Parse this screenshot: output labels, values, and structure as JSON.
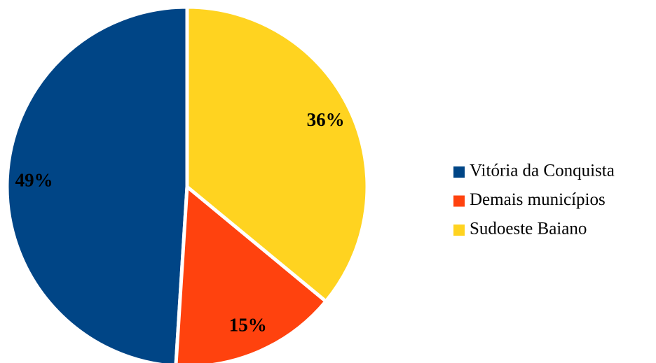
{
  "chart_data": {
    "type": "pie",
    "categories": [
      "Vitória da Conquista",
      "Demais municípios",
      "Sudoeste Baiano"
    ],
    "values": [
      49,
      15,
      36
    ],
    "value_labels": [
      "49%",
      "15%",
      "36%"
    ],
    "colors": [
      "#004586",
      "#ff420e",
      "#ffd320"
    ],
    "legend": "right"
  }
}
